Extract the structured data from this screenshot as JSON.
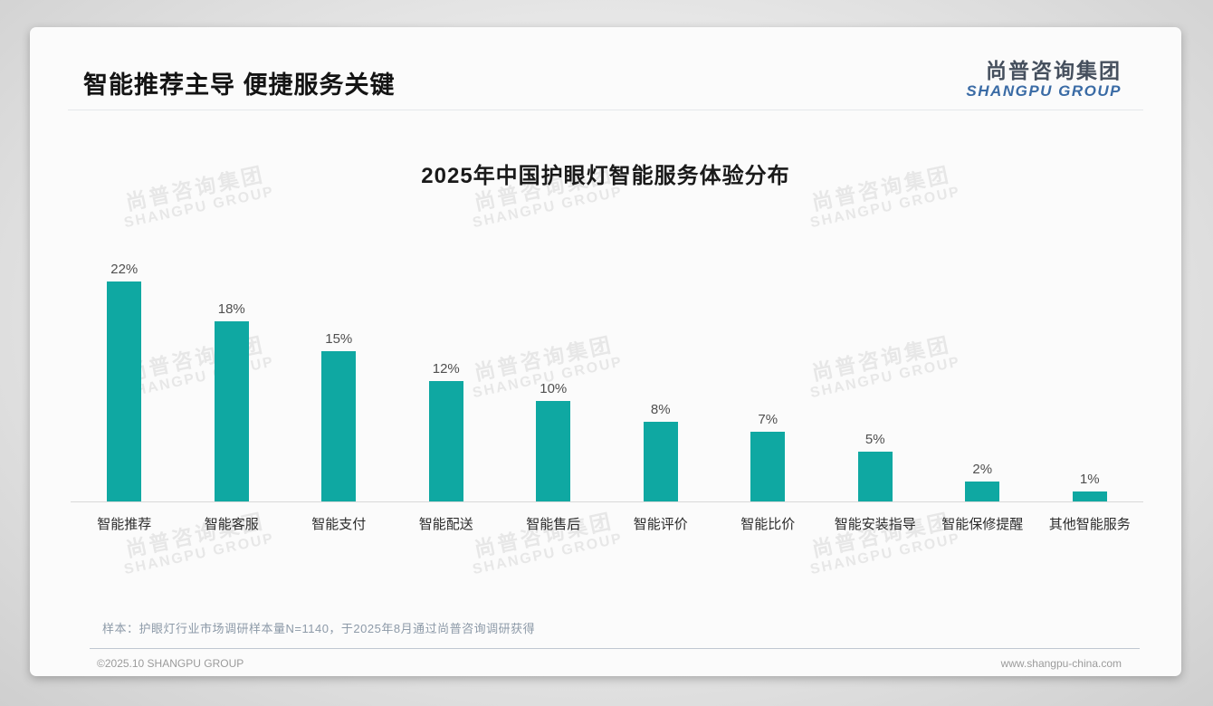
{
  "header": {
    "title": "智能推荐主导 便捷服务关键",
    "logo_cn": "尚普咨询集团",
    "logo_en": "SHANGPU GROUP"
  },
  "watermark": {
    "cn": "尚普咨询集团",
    "en": "SHANGPU GROUP"
  },
  "chart_data": {
    "type": "bar",
    "title": "2025年中国护眼灯智能服务体验分布",
    "categories": [
      "智能推荐",
      "智能客服",
      "智能支付",
      "智能配送",
      "智能售后",
      "智能评价",
      "智能比价",
      "智能安装指导",
      "智能保修提醒",
      "其他智能服务"
    ],
    "values": [
      22,
      18,
      15,
      12,
      10,
      8,
      7,
      5,
      2,
      1
    ],
    "unit": "%",
    "value_labels": [
      "22%",
      "18%",
      "15%",
      "12%",
      "10%",
      "8%",
      "7%",
      "5%",
      "2%",
      "1%"
    ],
    "bar_color": "#0fa8a2",
    "ylim": [
      0,
      24
    ],
    "grid": false,
    "legend": null,
    "xlabel": "",
    "ylabel": ""
  },
  "footer": {
    "note": "样本：护眼灯行业市场调研样本量N=1140，于2025年8月通过尚普咨询调研获得",
    "left": "©2025.10 SHANGPU GROUP",
    "right": "www.shangpu-china.com"
  },
  "colors": {
    "bar": "#0fa8a2",
    "logo_cn": "#46505e",
    "logo_en": "#3a6ba5",
    "card_bg": "#fbfbfb",
    "page_bg": "#e6e6e6",
    "axis_line": "#d9d9d9"
  }
}
